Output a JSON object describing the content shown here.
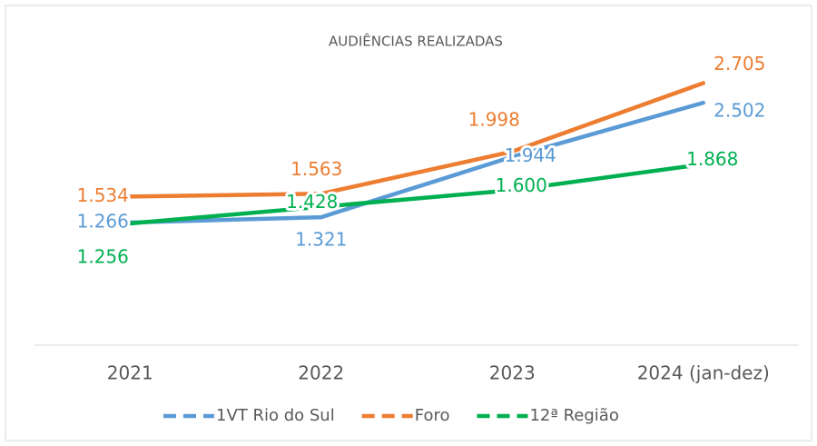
{
  "chart_data": {
    "type": "line",
    "title": "AUDIÊNCIAS REALIZADAS",
    "categories": [
      "2021",
      "2022",
      "2023",
      "2024 (jan-dez)"
    ],
    "ylim": [
      0,
      3000
    ],
    "series": [
      {
        "name": "1VT Rio do Sul",
        "color": "#5b9bd5",
        "values": [
          1266,
          1321,
          1944,
          2502
        ],
        "value_labels": [
          "1.266",
          "1.321",
          "1.944",
          "2.502"
        ]
      },
      {
        "name": "Foro",
        "color": "#ed7d31",
        "values": [
          1534,
          1563,
          1998,
          2705
        ],
        "value_labels": [
          "1.534",
          "1.563",
          "1.998",
          "2.705"
        ]
      },
      {
        "name": "12ª Região",
        "color": "#00b050",
        "values": [
          1256,
          1428,
          1600,
          1868
        ],
        "value_labels": [
          "1.256",
          "1.428",
          "1.600",
          "1.868"
        ]
      }
    ],
    "legend": "bottom"
  }
}
